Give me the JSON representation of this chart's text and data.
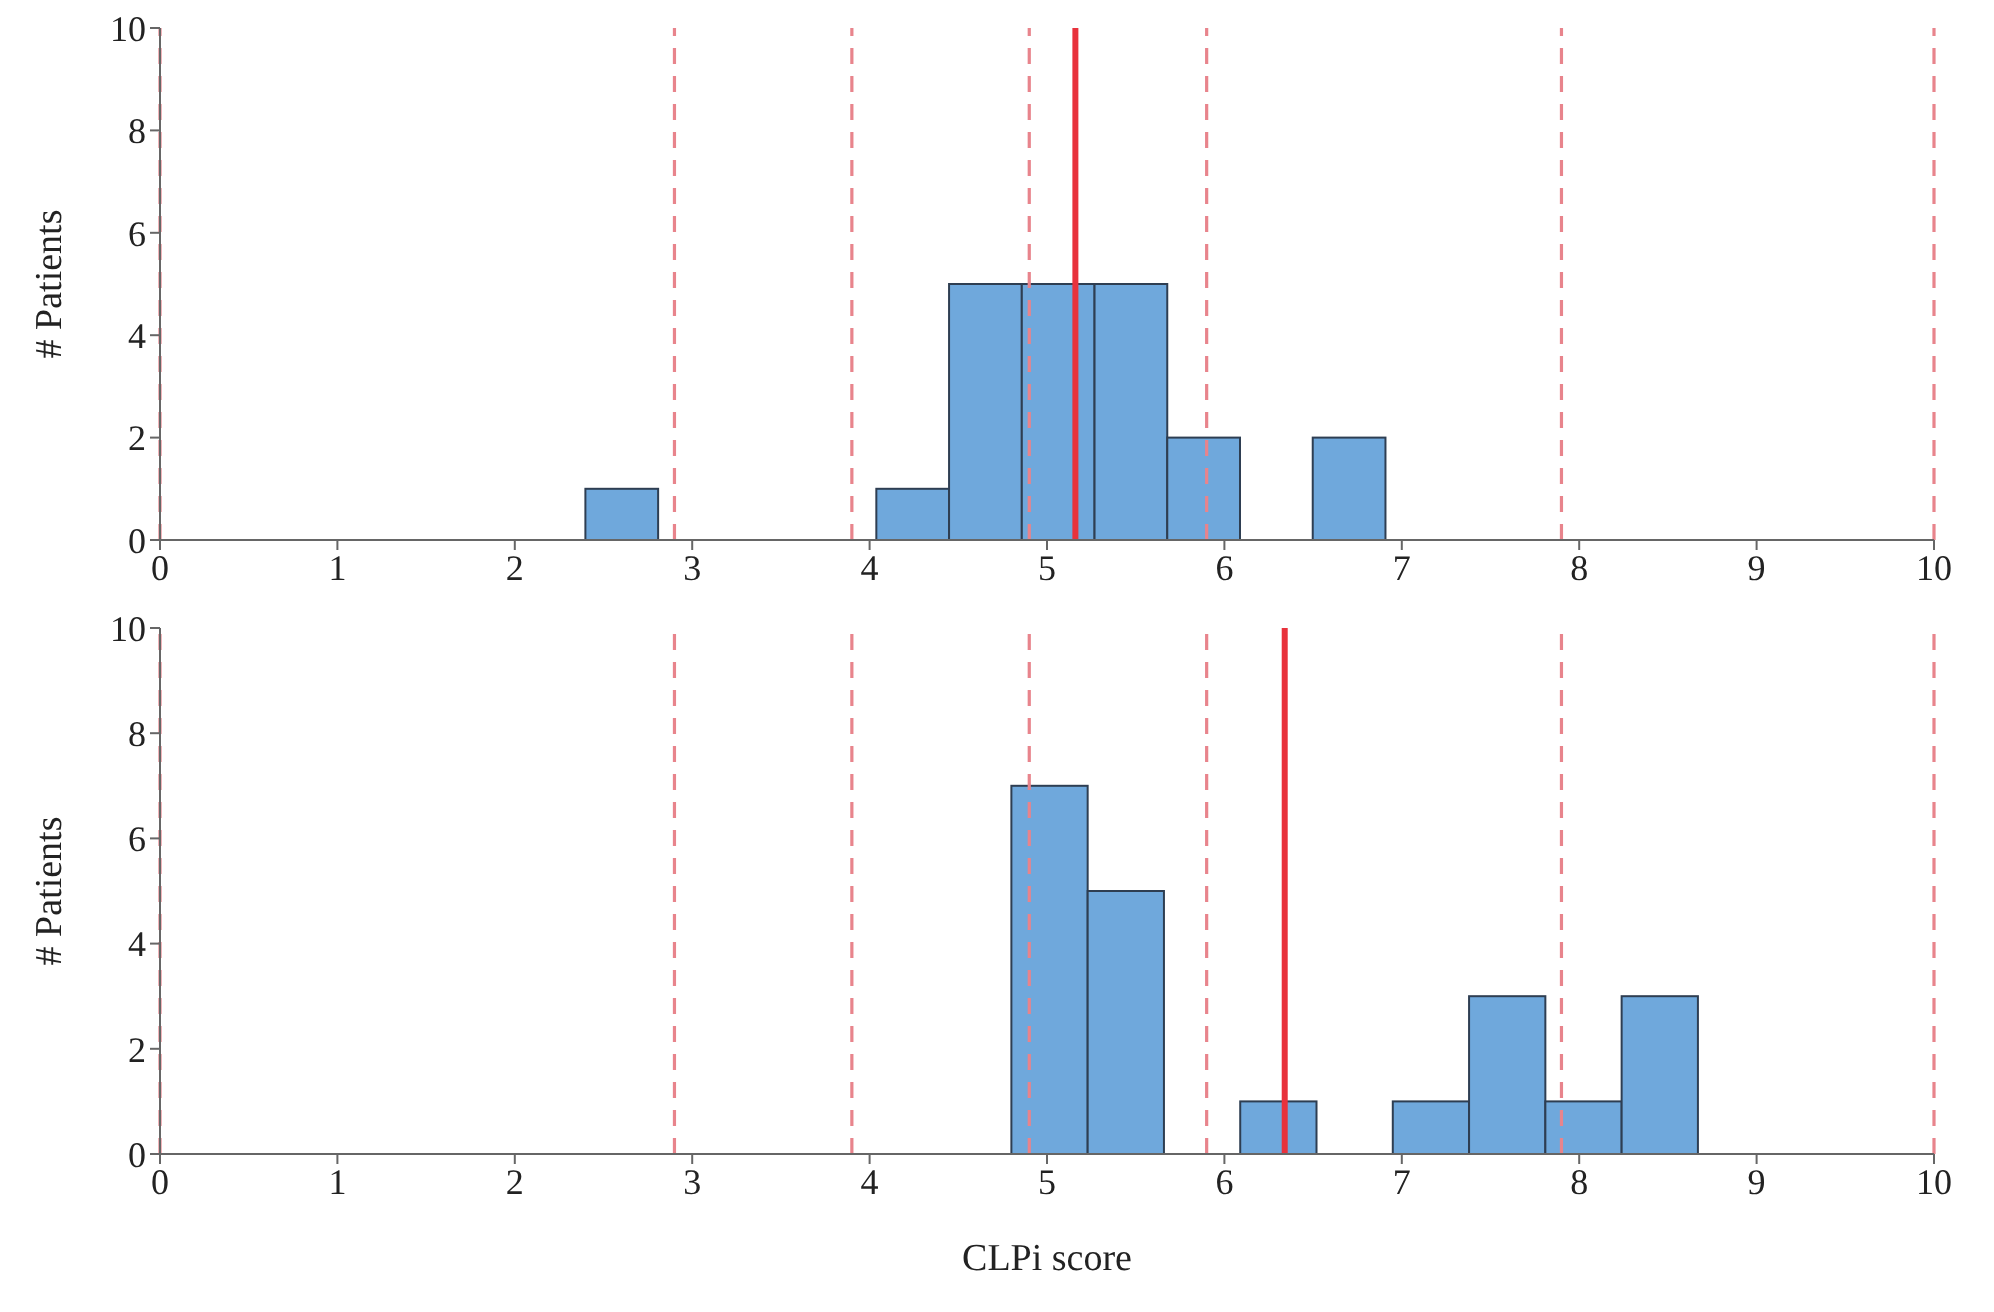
{
  "chart_data": [
    {
      "type": "histogram",
      "ylabel": "# Patients",
      "bins": [
        2.4,
        2.81,
        3.22,
        3.63,
        4.04,
        4.45,
        4.86,
        5.27,
        5.68,
        6.09,
        6.5,
        6.91
      ],
      "values": [
        1,
        0,
        0,
        0,
        1,
        5,
        5,
        5,
        2,
        0,
        2
      ],
      "color": "#6fa8dc",
      "xlim": [
        0,
        10
      ],
      "ylim": [
        0,
        10
      ],
      "xticks": [
        0,
        1,
        2,
        3,
        4,
        5,
        6,
        7,
        8,
        9,
        10
      ],
      "yticks": [
        0,
        2,
        4,
        6,
        8,
        10
      ],
      "ref_lines": [
        {
          "axis": "x",
          "value": 0,
          "color": "#e8848c",
          "line_style": "dashed"
        },
        {
          "axis": "x",
          "value": 2.9,
          "color": "#e8848c",
          "line_style": "dashed"
        },
        {
          "axis": "x",
          "value": 3.9,
          "color": "#e8848c",
          "line_style": "dashed"
        },
        {
          "axis": "x",
          "value": 4.9,
          "color": "#e8848c",
          "line_style": "dashed"
        },
        {
          "axis": "x",
          "value": 5.9,
          "color": "#e8848c",
          "line_style": "dashed"
        },
        {
          "axis": "x",
          "value": 7.9,
          "color": "#e8848c",
          "line_style": "dashed"
        },
        {
          "axis": "x",
          "value": 10,
          "color": "#e8848c",
          "line_style": "dashed"
        },
        {
          "axis": "x",
          "value": 5.16,
          "color": "#e8323c",
          "line_style": "solid"
        }
      ]
    },
    {
      "type": "histogram",
      "ylabel": "# Patients",
      "xlabel": "CLPi score",
      "bins": [
        4.8,
        5.23,
        5.66,
        6.09,
        6.52,
        6.95,
        7.38,
        7.81,
        8.24,
        8.67
      ],
      "values": [
        7,
        5,
        0,
        1,
        0,
        1,
        3,
        1,
        3
      ],
      "color": "#6fa8dc",
      "xlim": [
        0,
        10
      ],
      "ylim": [
        0,
        10
      ],
      "xticks": [
        0,
        1,
        2,
        3,
        4,
        5,
        6,
        7,
        8,
        9,
        10
      ],
      "yticks": [
        0,
        2,
        4,
        6,
        8,
        10
      ],
      "ref_lines": [
        {
          "axis": "x",
          "value": 0,
          "color": "#e8848c",
          "line_style": "dashed"
        },
        {
          "axis": "x",
          "value": 2.9,
          "color": "#e8848c",
          "line_style": "dashed"
        },
        {
          "axis": "x",
          "value": 3.9,
          "color": "#e8848c",
          "line_style": "dashed"
        },
        {
          "axis": "x",
          "value": 4.9,
          "color": "#e8848c",
          "line_style": "dashed"
        },
        {
          "axis": "x",
          "value": 5.9,
          "color": "#e8848c",
          "line_style": "dashed"
        },
        {
          "axis": "x",
          "value": 7.9,
          "color": "#e8848c",
          "line_style": "dashed"
        },
        {
          "axis": "x",
          "value": 10,
          "color": "#e8848c",
          "line_style": "dashed"
        },
        {
          "axis": "x",
          "value": 6.34,
          "color": "#e8323c",
          "line_style": "solid"
        }
      ]
    }
  ]
}
